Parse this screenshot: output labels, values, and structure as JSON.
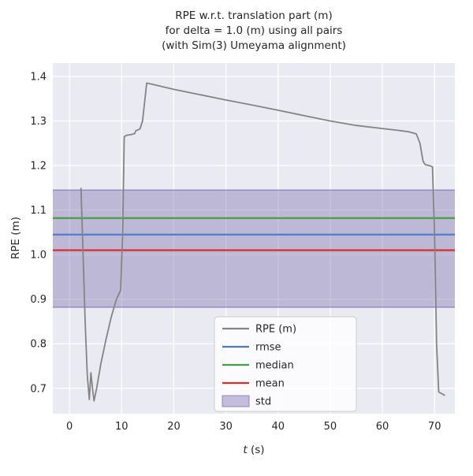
{
  "figure": {
    "background": "#ffffff",
    "plot_background": "#eaeaf2",
    "grid_color": "#ffffff",
    "text_color": "#262626"
  },
  "chart_data": {
    "type": "line",
    "title_lines": [
      "RPE w.r.t. translation part (m)",
      "for delta = 1.0 (m) using all pairs",
      "(with Sim(3) Umeyama alignment)"
    ],
    "xlabel_italic": "t",
    "xlabel_rest": " (s)",
    "ylabel": "RPE (m)",
    "xlim": [
      -3.2,
      73.9
    ],
    "ylim": [
      0.643,
      1.43
    ],
    "xticks": [
      0,
      10,
      20,
      30,
      40,
      50,
      60,
      70
    ],
    "yticks": [
      0.7,
      0.8,
      0.9,
      1.0,
      1.1,
      1.2,
      1.3,
      1.4
    ],
    "grid": true,
    "legend_position": "lower center",
    "series": [
      {
        "name": "rpe",
        "label": "RPE (m)",
        "color": "#848484",
        "x": [
          2.2,
          2.6,
          3.0,
          3.4,
          3.8,
          4.1,
          4.4,
          4.7,
          5.2,
          6.0,
          7.0,
          8.0,
          9.0,
          9.8,
          10.2,
          10.5,
          11.0,
          12.0,
          12.5,
          12.7,
          13.5,
          14.0,
          14.8,
          16.0,
          20.0,
          25.0,
          30.0,
          35.0,
          40.0,
          45.0,
          50.0,
          55.0,
          60.0,
          63.0,
          65.0,
          66.5,
          67.2,
          67.8,
          68.2,
          69.0,
          69.6,
          70.0,
          70.4,
          70.8,
          71.4,
          72.0
        ],
        "y": [
          1.15,
          1.0,
          0.85,
          0.73,
          0.675,
          0.735,
          0.7,
          0.672,
          0.7,
          0.755,
          0.81,
          0.86,
          0.9,
          0.92,
          1.05,
          1.265,
          1.268,
          1.27,
          1.272,
          1.278,
          1.282,
          1.3,
          1.385,
          1.382,
          1.371,
          1.359,
          1.347,
          1.336,
          1.324,
          1.312,
          1.3,
          1.29,
          1.283,
          1.279,
          1.276,
          1.271,
          1.25,
          1.21,
          1.202,
          1.2,
          1.197,
          1.05,
          0.8,
          0.692,
          0.688,
          0.684
        ]
      }
    ],
    "stats": [
      {
        "name": "rmse",
        "label": "rmse",
        "value": 1.045,
        "color": "#4878cf"
      },
      {
        "name": "median",
        "label": "median",
        "value": 1.082,
        "color": "#44a044"
      },
      {
        "name": "mean",
        "label": "mean",
        "value": 1.01,
        "color": "#d62f2f"
      },
      {
        "name": "std",
        "label": "std",
        "band": [
          0.882,
          1.145
        ],
        "color": "#8172b2",
        "fill_opacity": 0.42
      }
    ],
    "legend": {
      "items": [
        {
          "label": "RPE (m)",
          "color": "#848484",
          "type": "line"
        },
        {
          "label": "rmse",
          "color": "#4878cf",
          "type": "line"
        },
        {
          "label": "median",
          "color": "#44a044",
          "type": "line"
        },
        {
          "label": "mean",
          "color": "#d62f2f",
          "type": "line"
        },
        {
          "label": "std",
          "color": "#8172b2",
          "type": "patch"
        }
      ]
    }
  }
}
